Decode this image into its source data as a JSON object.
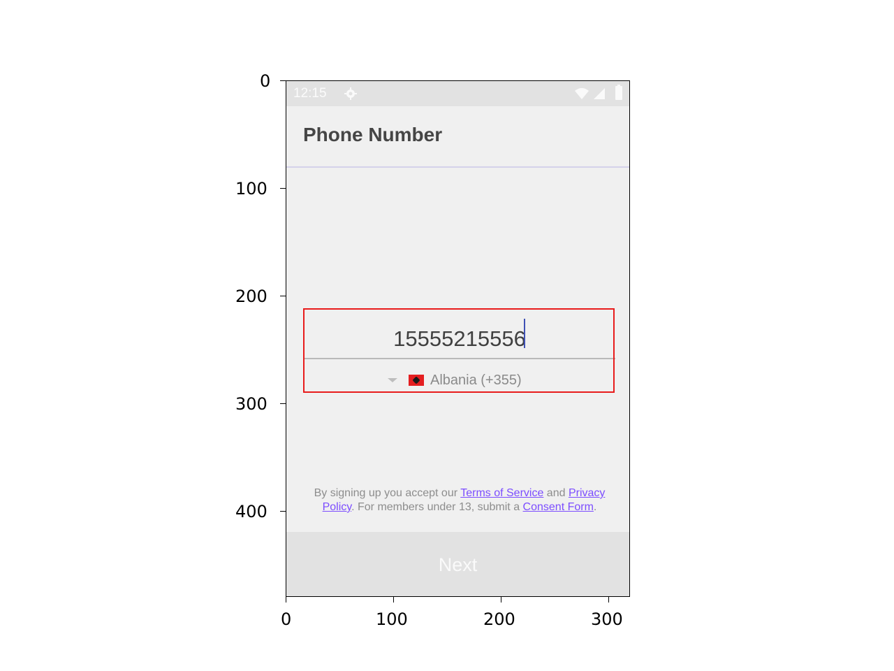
{
  "status_bar": {
    "time": "12:15",
    "icons": [
      "gear-icon",
      "wifi-icon",
      "signal-icon",
      "battery-icon"
    ]
  },
  "header": {
    "title": "Phone Number"
  },
  "phone": {
    "value": "15555215556",
    "country": {
      "flag": "albania-flag-icon",
      "label": "Albania (+355)"
    }
  },
  "terms": {
    "prefix": "By signing up you accept our ",
    "terms_link": "Terms of Service",
    "and": " and ",
    "privacy_link": "Privacy Policy",
    "middle": ". For members under 13, submit a ",
    "consent_link": "Consent Form",
    "suffix": "."
  },
  "footer": {
    "next_label": "Next"
  },
  "axes": {
    "y_ticks": [
      "0",
      "100",
      "200",
      "300",
      "400"
    ],
    "x_ticks": [
      "0",
      "100",
      "200",
      "300"
    ]
  },
  "colors": {
    "accent": "#7c4dff",
    "highlight": "#e81c1c",
    "background": "#f0f0f0"
  }
}
